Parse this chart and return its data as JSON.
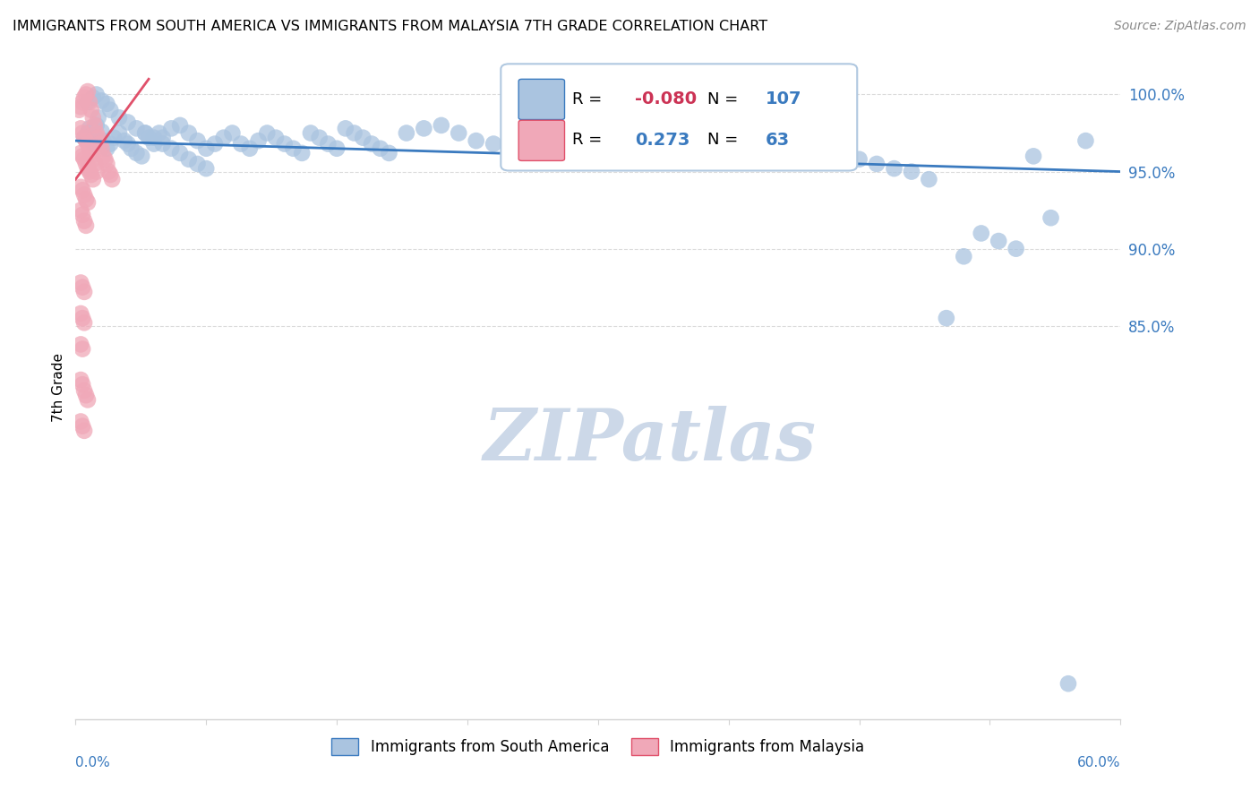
{
  "title": "IMMIGRANTS FROM SOUTH AMERICA VS IMMIGRANTS FROM MALAYSIA 7TH GRADE CORRELATION CHART",
  "source": "Source: ZipAtlas.com",
  "ylabel": "7th Grade",
  "ytick_labels": [
    "85.0%",
    "90.0%",
    "95.0%",
    "100.0%"
  ],
  "ytick_values": [
    0.85,
    0.9,
    0.95,
    1.0
  ],
  "xlim": [
    0.0,
    0.6
  ],
  "ylim": [
    0.595,
    1.025
  ],
  "legend_blue_R": "-0.080",
  "legend_blue_N": "107",
  "legend_pink_R": "0.273",
  "legend_pink_N": "63",
  "blue_color": "#aac4e0",
  "pink_color": "#f0a8b8",
  "trendline_blue_color": "#3a7abf",
  "trendline_pink_color": "#e0506a",
  "watermark": "ZIPatlas",
  "watermark_color": "#ccd8e8",
  "blue_trendline_x": [
    0.0,
    0.6
  ],
  "blue_trendline_y": [
    0.97,
    0.95
  ],
  "pink_trendline_x": [
    0.0,
    0.042
  ],
  "pink_trendline_y": [
    0.945,
    1.01
  ],
  "blue_x": [
    0.005,
    0.007,
    0.008,
    0.009,
    0.01,
    0.011,
    0.012,
    0.013,
    0.015,
    0.016,
    0.018,
    0.02,
    0.022,
    0.025,
    0.028,
    0.03,
    0.032,
    0.035,
    0.038,
    0.04,
    0.042,
    0.045,
    0.048,
    0.05,
    0.055,
    0.06,
    0.065,
    0.07,
    0.075,
    0.08,
    0.085,
    0.09,
    0.095,
    0.1,
    0.105,
    0.11,
    0.115,
    0.12,
    0.125,
    0.13,
    0.135,
    0.14,
    0.145,
    0.15,
    0.155,
    0.16,
    0.165,
    0.17,
    0.175,
    0.18,
    0.19,
    0.2,
    0.21,
    0.22,
    0.23,
    0.24,
    0.25,
    0.26,
    0.27,
    0.28,
    0.29,
    0.3,
    0.31,
    0.32,
    0.33,
    0.34,
    0.35,
    0.36,
    0.37,
    0.38,
    0.39,
    0.4,
    0.41,
    0.42,
    0.43,
    0.44,
    0.45,
    0.46,
    0.47,
    0.48,
    0.49,
    0.5,
    0.51,
    0.52,
    0.53,
    0.54,
    0.55,
    0.56,
    0.57,
    0.58,
    0.007,
    0.01,
    0.012,
    0.015,
    0.018,
    0.02,
    0.025,
    0.03,
    0.035,
    0.04,
    0.045,
    0.05,
    0.055,
    0.06,
    0.065,
    0.07,
    0.075
  ],
  "blue_y": [
    0.972,
    0.975,
    0.978,
    0.971,
    0.968,
    0.974,
    0.98,
    0.985,
    0.976,
    0.97,
    0.965,
    0.968,
    0.972,
    0.975,
    0.97,
    0.968,
    0.965,
    0.962,
    0.96,
    0.975,
    0.972,
    0.968,
    0.975,
    0.972,
    0.978,
    0.98,
    0.975,
    0.97,
    0.965,
    0.968,
    0.972,
    0.975,
    0.968,
    0.965,
    0.97,
    0.975,
    0.972,
    0.968,
    0.965,
    0.962,
    0.975,
    0.972,
    0.968,
    0.965,
    0.978,
    0.975,
    0.972,
    0.968,
    0.965,
    0.962,
    0.975,
    0.978,
    0.98,
    0.975,
    0.97,
    0.968,
    0.972,
    0.975,
    0.98,
    0.985,
    0.978,
    0.975,
    0.978,
    0.98,
    0.982,
    0.975,
    0.972,
    0.968,
    0.965,
    0.978,
    0.98,
    0.982,
    0.985,
    0.98,
    0.975,
    0.96,
    0.958,
    0.955,
    0.952,
    0.95,
    0.945,
    0.855,
    0.895,
    0.91,
    0.905,
    0.9,
    0.96,
    0.92,
    0.618,
    0.97,
    0.995,
    0.998,
    1.0,
    0.996,
    0.994,
    0.99,
    0.985,
    0.982,
    0.978,
    0.975,
    0.972,
    0.968,
    0.965,
    0.962,
    0.958,
    0.955,
    0.952
  ],
  "pink_x": [
    0.002,
    0.003,
    0.004,
    0.005,
    0.006,
    0.007,
    0.008,
    0.009,
    0.01,
    0.011,
    0.012,
    0.013,
    0.014,
    0.015,
    0.016,
    0.017,
    0.018,
    0.019,
    0.02,
    0.021,
    0.003,
    0.004,
    0.005,
    0.006,
    0.007,
    0.008,
    0.009,
    0.01,
    0.011,
    0.012,
    0.003,
    0.004,
    0.005,
    0.006,
    0.007,
    0.008,
    0.009,
    0.01,
    0.003,
    0.004,
    0.005,
    0.006,
    0.007,
    0.003,
    0.004,
    0.005,
    0.006,
    0.003,
    0.004,
    0.005,
    0.003,
    0.004,
    0.005,
    0.003,
    0.004,
    0.003,
    0.004,
    0.005,
    0.006,
    0.007,
    0.003,
    0.004,
    0.005
  ],
  "pink_y": [
    0.99,
    0.992,
    0.995,
    0.998,
    1.0,
    1.002,
    0.995,
    0.99,
    0.985,
    0.98,
    0.975,
    0.972,
    0.968,
    0.965,
    0.96,
    0.958,
    0.955,
    0.95,
    0.948,
    0.945,
    0.978,
    0.975,
    0.972,
    0.97,
    0.968,
    0.965,
    0.96,
    0.958,
    0.955,
    0.95,
    0.962,
    0.96,
    0.958,
    0.955,
    0.952,
    0.95,
    0.948,
    0.945,
    0.94,
    0.938,
    0.935,
    0.932,
    0.93,
    0.925,
    0.922,
    0.918,
    0.915,
    0.878,
    0.875,
    0.872,
    0.858,
    0.855,
    0.852,
    0.838,
    0.835,
    0.815,
    0.812,
    0.808,
    0.805,
    0.802,
    0.788,
    0.785,
    0.782
  ]
}
